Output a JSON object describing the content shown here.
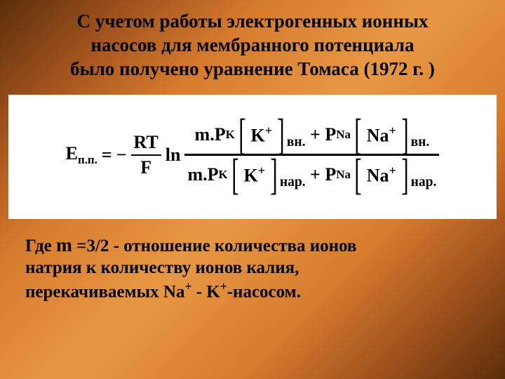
{
  "title": {
    "line1": "С учетом работы электрогенных ионных",
    "line2": "насосов для мембранного потенциала",
    "line3": "было получено уравнение Томаса (1972 г. )",
    "fontsize": 27
  },
  "equation": {
    "lhs_E": "E",
    "lhs_sub": "п.п.",
    "equals": "=",
    "minus": "−",
    "rt": "RT",
    "f": "F",
    "ln": "ln",
    "m": "m",
    "dot": ".",
    "PK": "P",
    "PK_sub": "K",
    "K": "K",
    "K_sup": "+",
    "plus": "+",
    "PNa": "P",
    "PNa_sub": "Na",
    "Na": "Na",
    "Na_sup": "+",
    "sub_in": "вн.",
    "sub_out": "нар.",
    "main_fontsize": 26,
    "background": "#ffffff"
  },
  "footer": {
    "text1": "Где ",
    "m_var": "m",
    "text2": " =3/2 - отношение количества ионов",
    "text3": "натрия к количеству ионов калия,",
    "text4_a": "перекачиваемых Na",
    "text4_sup1": "+",
    "text4_b": " - K",
    "text4_sup2": "+",
    "text4_c": "-насосом.",
    "fontsize": 25
  },
  "colors": {
    "text": "#000000",
    "eq_bg": "#ffffff"
  }
}
